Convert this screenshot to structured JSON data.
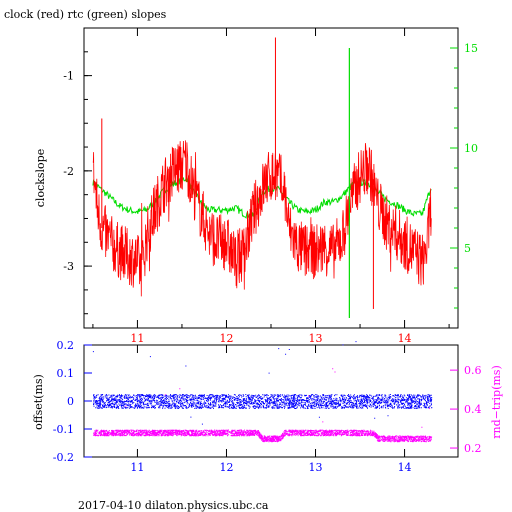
{
  "title": "clock (red) rtc (green) slopes",
  "footer": "2017-04-10  dilaton.physics.ubc.ca",
  "colors": {
    "clock": "#ff0000",
    "rtc": "#00dd00",
    "offset": "#0000ff",
    "roundtrip": "#ff00ff",
    "axis": "#000000"
  },
  "chart_data": [
    {
      "type": "line",
      "title": "clock (red) rtc (green) slopes",
      "ylabel": "clockslope",
      "ylabel_right": "",
      "x_ticks": [
        "11",
        "12",
        "13",
        "14"
      ],
      "x_tick_values": [
        11,
        12,
        13,
        14
      ],
      "xlim": [
        10.4,
        14.6
      ],
      "ylim": [
        -3.65,
        -0.5
      ],
      "y_ticks": [
        "-1",
        "-2",
        "-3"
      ],
      "y_tick_values": [
        -1,
        -2,
        -3
      ],
      "y2lim": [
        1.0,
        16.0
      ],
      "y2_ticks": [
        "5",
        "10",
        "15"
      ],
      "y2_tick_values": [
        5,
        10,
        15
      ],
      "series": [
        {
          "name": "clock",
          "axis": "left",
          "x": [
            10.5,
            10.55,
            10.6,
            10.7,
            10.8,
            10.9,
            11.0,
            11.05,
            11.1,
            11.2,
            11.3,
            11.4,
            11.5,
            11.55,
            11.6,
            11.7,
            11.8,
            11.9,
            12.0,
            12.05,
            12.1,
            12.2,
            12.3,
            12.4,
            12.45,
            12.5,
            12.55,
            12.6,
            12.65,
            12.7,
            12.8,
            12.9,
            13.0,
            13.1,
            13.2,
            13.3,
            13.4,
            13.5,
            13.6,
            13.7,
            13.8,
            13.9,
            14.0,
            14.1,
            14.2,
            14.25,
            14.3
          ],
          "y": [
            -1.95,
            -2.4,
            -2.6,
            -2.75,
            -2.85,
            -2.9,
            -2.95,
            -3.05,
            -2.7,
            -2.4,
            -2.15,
            -2.0,
            -1.95,
            -1.9,
            -2.1,
            -2.4,
            -2.65,
            -2.75,
            -2.75,
            -2.85,
            -2.95,
            -2.85,
            -2.45,
            -2.2,
            -2.1,
            -2.05,
            -2.05,
            -2.1,
            -2.2,
            -2.6,
            -2.8,
            -2.85,
            -2.85,
            -2.8,
            -2.85,
            -2.7,
            -2.3,
            -2.05,
            -1.95,
            -2.35,
            -2.55,
            -2.65,
            -2.75,
            -2.85,
            -2.95,
            -2.8,
            -2.35
          ]
        },
        {
          "name": "rtc",
          "axis": "right",
          "x": [
            10.5,
            10.6,
            10.7,
            10.8,
            10.9,
            11.0,
            11.1,
            11.2,
            11.3,
            11.4,
            11.5,
            11.55,
            11.6,
            11.7,
            11.8,
            11.9,
            12.0,
            12.1,
            12.2,
            12.3,
            12.4,
            12.5,
            12.6,
            12.7,
            12.8,
            12.9,
            13.0,
            13.1,
            13.2,
            13.3,
            13.4,
            13.5,
            13.6,
            13.7,
            13.8,
            13.9,
            14.0,
            14.1,
            14.2,
            14.25,
            14.3
          ],
          "y": [
            8.3,
            7.9,
            7.5,
            7.1,
            6.9,
            6.8,
            6.9,
            7.3,
            7.9,
            8.2,
            8.4,
            8.5,
            8.1,
            7.3,
            6.9,
            6.9,
            6.9,
            7.0,
            6.7,
            6.6,
            7.8,
            8.0,
            7.9,
            7.3,
            6.9,
            6.8,
            6.9,
            7.3,
            7.3,
            7.6,
            8.1,
            8.3,
            8.2,
            7.8,
            7.4,
            7.2,
            6.9,
            6.7,
            6.7,
            7.4,
            8.1
          ]
        }
      ],
      "spikes": [
        {
          "series": "clock",
          "x": 12.55,
          "y": -0.6
        },
        {
          "series": "rtc",
          "x": 13.38,
          "y": 15.0
        },
        {
          "series": "rtc",
          "x": 13.38,
          "y": 1.5
        },
        {
          "series": "clock",
          "x": 10.6,
          "y": -1.45
        },
        {
          "series": "clock",
          "x": 13.65,
          "y": -3.45
        }
      ]
    },
    {
      "type": "scatter",
      "ylabel": "offset(ms)",
      "ylabel_right": "rnd−trip(ms)",
      "x_ticks": [
        "11",
        "12",
        "13",
        "14"
      ],
      "x_tick_values": [
        11,
        12,
        13,
        14
      ],
      "xlim": [
        10.4,
        14.6
      ],
      "ylim": [
        -0.2,
        0.2
      ],
      "y_ticks": [
        "-0.2",
        "-0.1",
        "0",
        "0.1",
        "0.2"
      ],
      "y_tick_values": [
        -0.2,
        -0.1,
        0,
        0.1,
        0.2
      ],
      "y2lim": [
        0.154,
        0.729
      ],
      "y2_ticks": [
        "0.2",
        "0.4",
        "0.6"
      ],
      "y2_tick_values": [
        0.2,
        0.4,
        0.6
      ],
      "series": [
        {
          "name": "offset",
          "axis": "left",
          "x": [
            10.5,
            11.0,
            11.5,
            12.0,
            12.4,
            12.6,
            13.0,
            13.5,
            13.7,
            14.0,
            14.3
          ],
          "y": [
            0.0,
            0.0,
            0.0,
            0.0,
            0.0,
            0.0,
            0.0,
            0.0,
            0.0,
            0.0,
            0.0
          ]
        },
        {
          "name": "roundtrip",
          "axis": "right",
          "x": [
            10.5,
            11.0,
            11.5,
            12.0,
            12.35,
            12.4,
            12.6,
            12.65,
            13.0,
            13.5,
            13.65,
            13.7,
            14.0,
            14.3
          ],
          "y": [
            0.28,
            0.28,
            0.28,
            0.28,
            0.28,
            0.25,
            0.25,
            0.28,
            0.28,
            0.28,
            0.28,
            0.25,
            0.25,
            0.25
          ]
        }
      ]
    }
  ]
}
